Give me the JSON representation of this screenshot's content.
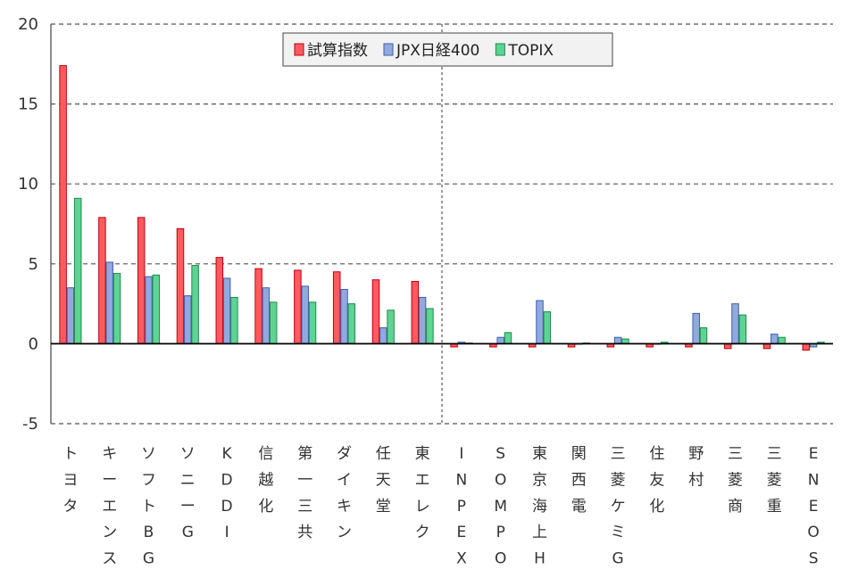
{
  "chart_data": {
    "type": "bar",
    "title": "",
    "xlabel": "",
    "ylabel": "",
    "ylim": [
      -5,
      20
    ],
    "yticks": [
      -5,
      0,
      5,
      10,
      15,
      20
    ],
    "grid": true,
    "legend_position": "top-center",
    "categories": [
      "トヨタ",
      "キーエンス",
      "ソフトBG",
      "ソニーG",
      "KDDI",
      "信越化",
      "第一三共",
      "ダイキン",
      "任天堂",
      "東エレク",
      "INPEX",
      "SOMPO",
      "東京海上H",
      "関西電",
      "三菱ケミG",
      "住友化",
      "野村",
      "三菱商",
      "三菱重",
      "ENEOS"
    ],
    "series": [
      {
        "name": "試算指数",
        "color": "#ff5a5f",
        "stroke": "#c0000c",
        "values": [
          17.4,
          7.9,
          7.9,
          7.2,
          5.4,
          4.7,
          4.6,
          4.5,
          4.0,
          3.9,
          -0.2,
          -0.2,
          -0.2,
          -0.2,
          -0.2,
          -0.2,
          -0.2,
          -0.3,
          -0.3,
          -0.4
        ]
      },
      {
        "name": "JPX日経400",
        "color": "#91a9dc",
        "stroke": "#3b5fb0",
        "values": [
          3.5,
          5.1,
          4.2,
          3.0,
          4.1,
          3.5,
          3.6,
          3.4,
          1.0,
          2.9,
          0.1,
          0.4,
          2.7,
          0.0,
          0.4,
          0.0,
          1.9,
          2.5,
          0.6,
          -0.2
        ]
      },
      {
        "name": "TOPIX",
        "color": "#5fd394",
        "stroke": "#1e8a4a",
        "values": [
          9.1,
          4.4,
          4.3,
          4.9,
          2.9,
          2.6,
          2.6,
          2.5,
          2.1,
          2.2,
          0.05,
          0.7,
          2.0,
          0.05,
          0.3,
          0.1,
          1.0,
          1.8,
          0.4,
          0.1
        ]
      }
    ]
  }
}
